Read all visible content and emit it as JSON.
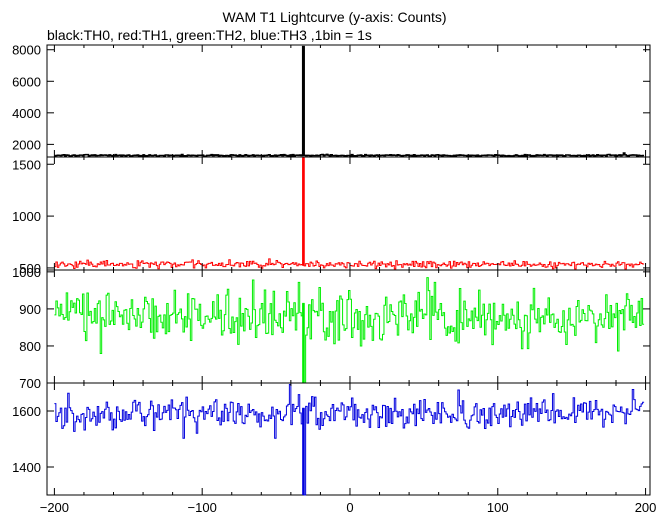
{
  "chart_data": {
    "type": "line",
    "title": "WAM T1 Lightcurve (y-axis: Counts)",
    "subtitle": "black:TH0, red:TH1, green:TH2, blue:TH3 ,1bin = 1s",
    "xlim": [
      -205,
      203
    ],
    "x_ticks": [
      -200,
      -100,
      0,
      100,
      200
    ],
    "x_tick_labels": [
      "−200",
      "−100",
      "0",
      "100",
      "200"
    ],
    "grid": false,
    "panels": [
      {
        "series_name": "TH0",
        "color": "#000000",
        "ylim": [
          1200,
          8300
        ],
        "y_ticks": [
          2000,
          4000,
          6000,
          8000
        ],
        "y_tick_labels": [
          "2000",
          "4000",
          "6000",
          "8000"
        ],
        "baseline": 1300,
        "noise": 25,
        "spike_time": -32,
        "spike_peak": 8200,
        "spike_dip": 1300,
        "step_seed": 11,
        "seed": 101,
        "extra_spikes": [
          [
            185,
            1450
          ]
        ]
      },
      {
        "series_name": "TH1",
        "color": "#ff0000",
        "ylim": [
          480,
          1570
        ],
        "y_ticks": [
          500,
          1000,
          1500
        ],
        "y_tick_labels": [
          "500",
          "1000",
          "1500"
        ],
        "baseline": 535,
        "noise": 18,
        "spike_time": -32,
        "spike_peak": 1560,
        "spike_dip": 520,
        "seed": 202,
        "extra_spikes": []
      },
      {
        "series_name": "TH2",
        "color": "#00ee00",
        "ylim": [
          700,
          1005
        ],
        "y_ticks": [
          700,
          800,
          900,
          1000
        ],
        "y_tick_labels": [
          "700",
          "800",
          "900",
          "1000"
        ],
        "baseline": 880,
        "noise": 35,
        "spike_time": -32,
        "spike_peak": 915,
        "spike_dip": 700,
        "seed": 303,
        "extra_spikes": []
      },
      {
        "series_name": "TH3",
        "color": "#0000dd",
        "ylim": [
          1300,
          1700
        ],
        "y_ticks": [
          1400,
          1600
        ],
        "y_tick_labels": [
          "1400",
          "1600"
        ],
        "baseline": 1590,
        "noise": 30,
        "spike_time": -32,
        "spike_peak": 1610,
        "spike_dip": 1300,
        "seed": 404,
        "extra_spikes": []
      }
    ]
  }
}
